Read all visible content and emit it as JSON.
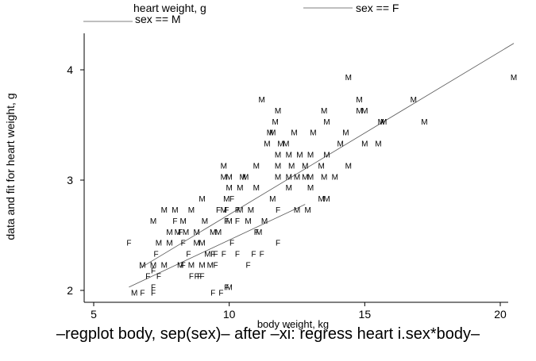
{
  "chart_data": {
    "type": "scatter",
    "xlabel": "body weight, kg",
    "ylabel": "data and fit for heart weight, g",
    "caption": "–regplot body, sep(sex)– after –xi: regress heart i.sex*body–",
    "xlim": [
      4.8,
      20.6
    ],
    "ylim": [
      1.95,
      4.3
    ],
    "x_ticks": [
      5,
      10,
      15,
      20
    ],
    "y_ticks": [
      2,
      3,
      4
    ],
    "grid": false,
    "legend": {
      "position": "top",
      "entries": [
        {
          "label": "heart weight, g",
          "marker": "none"
        },
        {
          "label": "sex == F",
          "marker": "line"
        },
        {
          "label": "sex == M",
          "marker": "line"
        }
      ]
    },
    "fit_lines": [
      {
        "name": "sex == F",
        "x": [
          6.3,
          12.8
        ],
        "y": [
          2.03,
          2.78
        ]
      },
      {
        "name": "sex == M",
        "x": [
          6.7,
          20.5
        ],
        "y": [
          2.2,
          4.24
        ]
      }
    ],
    "series": [
      {
        "name": "heart weight, g",
        "points": [
          [
            6.3,
            2.43
          ],
          [
            7.3,
            2.33
          ],
          [
            7.2,
            2.18
          ],
          [
            7.0,
            2.13
          ],
          [
            7.4,
            2.13
          ],
          [
            7.2,
            2.03
          ],
          [
            6.8,
            1.98
          ],
          [
            7.2,
            1.98
          ],
          [
            8.0,
            2.63
          ],
          [
            8.2,
            2.53
          ],
          [
            8.3,
            2.43
          ],
          [
            8.5,
            2.33
          ],
          [
            8.3,
            2.23
          ],
          [
            8.6,
            2.13
          ],
          [
            8.8,
            2.13
          ],
          [
            8.9,
            2.13
          ],
          [
            9.0,
            2.13
          ],
          [
            9.5,
            2.23
          ],
          [
            9.4,
            2.33
          ],
          [
            9.5,
            2.33
          ],
          [
            9.8,
            2.33
          ],
          [
            10.1,
            2.43
          ],
          [
            9.9,
            2.63
          ],
          [
            9.9,
            2.73
          ],
          [
            10.3,
            2.63
          ],
          [
            10.3,
            2.73
          ],
          [
            10.1,
            2.83
          ],
          [
            9.6,
            2.73
          ],
          [
            9.4,
            1.98
          ],
          [
            9.7,
            1.98
          ],
          [
            9.9,
            2.03
          ],
          [
            10.3,
            2.33
          ],
          [
            10.7,
            2.23
          ],
          [
            10.9,
            2.33
          ],
          [
            11.2,
            2.33
          ],
          [
            11.8,
            2.43
          ],
          [
            11.8,
            2.73
          ],
          [
            11.0,
            2.53
          ],
          [
            12.2,
            2.93
          ],
          [
            13.0,
            2.93
          ],
          [
            6.5,
            1.98
          ],
          [
            6.8,
            2.23
          ],
          [
            7.2,
            2.23
          ],
          [
            7.4,
            2.43
          ],
          [
            7.8,
            2.43
          ],
          [
            7.2,
            2.63
          ],
          [
            7.6,
            2.73
          ],
          [
            7.8,
            2.53
          ],
          [
            8.0,
            2.73
          ],
          [
            8.3,
            2.63
          ],
          [
            8.1,
            2.53
          ],
          [
            8.4,
            2.53
          ],
          [
            8.8,
            2.53
          ],
          [
            8.6,
            2.73
          ],
          [
            9.0,
            2.43
          ],
          [
            8.8,
            2.43
          ],
          [
            9.1,
            2.63
          ],
          [
            9.4,
            2.53
          ],
          [
            9.0,
            2.83
          ],
          [
            9.8,
            2.73
          ],
          [
            9.6,
            2.53
          ],
          [
            7.6,
            2.23
          ],
          [
            8.2,
            2.23
          ],
          [
            8.6,
            2.23
          ],
          [
            9.0,
            2.23
          ],
          [
            9.2,
            2.33
          ],
          [
            9.3,
            2.23
          ],
          [
            10.0,
            2.03
          ],
          [
            10.0,
            2.63
          ],
          [
            10.4,
            2.73
          ],
          [
            10.7,
            2.63
          ],
          [
            10.0,
            2.93
          ],
          [
            9.9,
            2.83
          ],
          [
            9.8,
            3.03
          ],
          [
            9.8,
            3.13
          ],
          [
            10.0,
            3.03
          ],
          [
            10.4,
            2.93
          ],
          [
            10.5,
            3.03
          ],
          [
            10.8,
            2.73
          ],
          [
            10.6,
            3.03
          ],
          [
            11.0,
            2.93
          ],
          [
            11.3,
            2.63
          ],
          [
            11.1,
            2.53
          ],
          [
            11.6,
            2.83
          ],
          [
            11.0,
            3.13
          ],
          [
            11.4,
            3.33
          ],
          [
            11.6,
            3.43
          ],
          [
            11.7,
            3.53
          ],
          [
            11.8,
            3.03
          ],
          [
            11.8,
            3.23
          ],
          [
            11.9,
            3.33
          ],
          [
            11.8,
            3.13
          ],
          [
            12.2,
            3.23
          ],
          [
            12.4,
            3.43
          ],
          [
            12.2,
            3.03
          ],
          [
            12.3,
            3.13
          ],
          [
            12.5,
            3.03
          ],
          [
            12.6,
            3.23
          ],
          [
            12.5,
            2.73
          ],
          [
            12.9,
            2.73
          ],
          [
            12.8,
            3.13
          ],
          [
            12.8,
            3.03
          ],
          [
            13.0,
            3.03
          ],
          [
            13.0,
            3.23
          ],
          [
            13.1,
            3.43
          ],
          [
            13.5,
            3.03
          ],
          [
            13.4,
            3.13
          ],
          [
            13.6,
            3.23
          ],
          [
            13.5,
            3.63
          ],
          [
            13.4,
            2.83
          ],
          [
            13.6,
            2.83
          ],
          [
            13.9,
            3.03
          ],
          [
            13.6,
            3.53
          ],
          [
            14.1,
            3.33
          ],
          [
            14.3,
            3.43
          ],
          [
            14.4,
            3.13
          ],
          [
            14.4,
            3.93
          ],
          [
            14.8,
            3.73
          ],
          [
            14.8,
            3.63
          ],
          [
            15.0,
            3.63
          ],
          [
            15.0,
            3.33
          ],
          [
            15.5,
            3.33
          ],
          [
            15.6,
            3.53
          ],
          [
            15.7,
            3.53
          ],
          [
            16.8,
            3.73
          ],
          [
            17.2,
            3.53
          ],
          [
            20.5,
            3.93
          ],
          [
            12.1,
            3.33
          ],
          [
            11.5,
            3.43
          ],
          [
            11.2,
            3.73
          ],
          [
            11.8,
            3.63
          ]
        ],
        "markers": [
          "F",
          "F",
          "F",
          "F",
          "F",
          "F",
          "F",
          "F",
          "F",
          "F",
          "F",
          "F",
          "F",
          "F",
          "F",
          "F",
          "F",
          "F",
          "F",
          "F",
          "F",
          "F",
          "F",
          "F",
          "F",
          "F",
          "F",
          "F",
          "F",
          "F",
          "F",
          "F",
          "F",
          "F",
          "F",
          "F",
          "F",
          "F",
          "M",
          "M",
          "M",
          "M",
          "M",
          "M",
          "M",
          "M",
          "M",
          "M",
          "M",
          "M",
          "M",
          "M",
          "M",
          "M",
          "M",
          "M",
          "M",
          "M",
          "M",
          "M",
          "M",
          "M",
          "M",
          "M",
          "M",
          "M",
          "M",
          "M",
          "M",
          "M",
          "M",
          "M",
          "M",
          "M",
          "M",
          "M",
          "M",
          "M",
          "M",
          "M",
          "M",
          "M",
          "M",
          "M",
          "M",
          "M",
          "M",
          "M",
          "M",
          "M",
          "M",
          "M",
          "M",
          "M",
          "M",
          "M",
          "M",
          "M",
          "M",
          "M",
          "M",
          "M",
          "M",
          "M",
          "M",
          "M",
          "M",
          "M",
          "M",
          "M",
          "M",
          "M",
          "M",
          "M",
          "M",
          "M",
          "M",
          "M",
          "M",
          "M",
          "M",
          "M",
          "M",
          "M",
          "M",
          "M",
          "M",
          "M",
          "M",
          "M",
          "M"
        ]
      }
    ]
  }
}
